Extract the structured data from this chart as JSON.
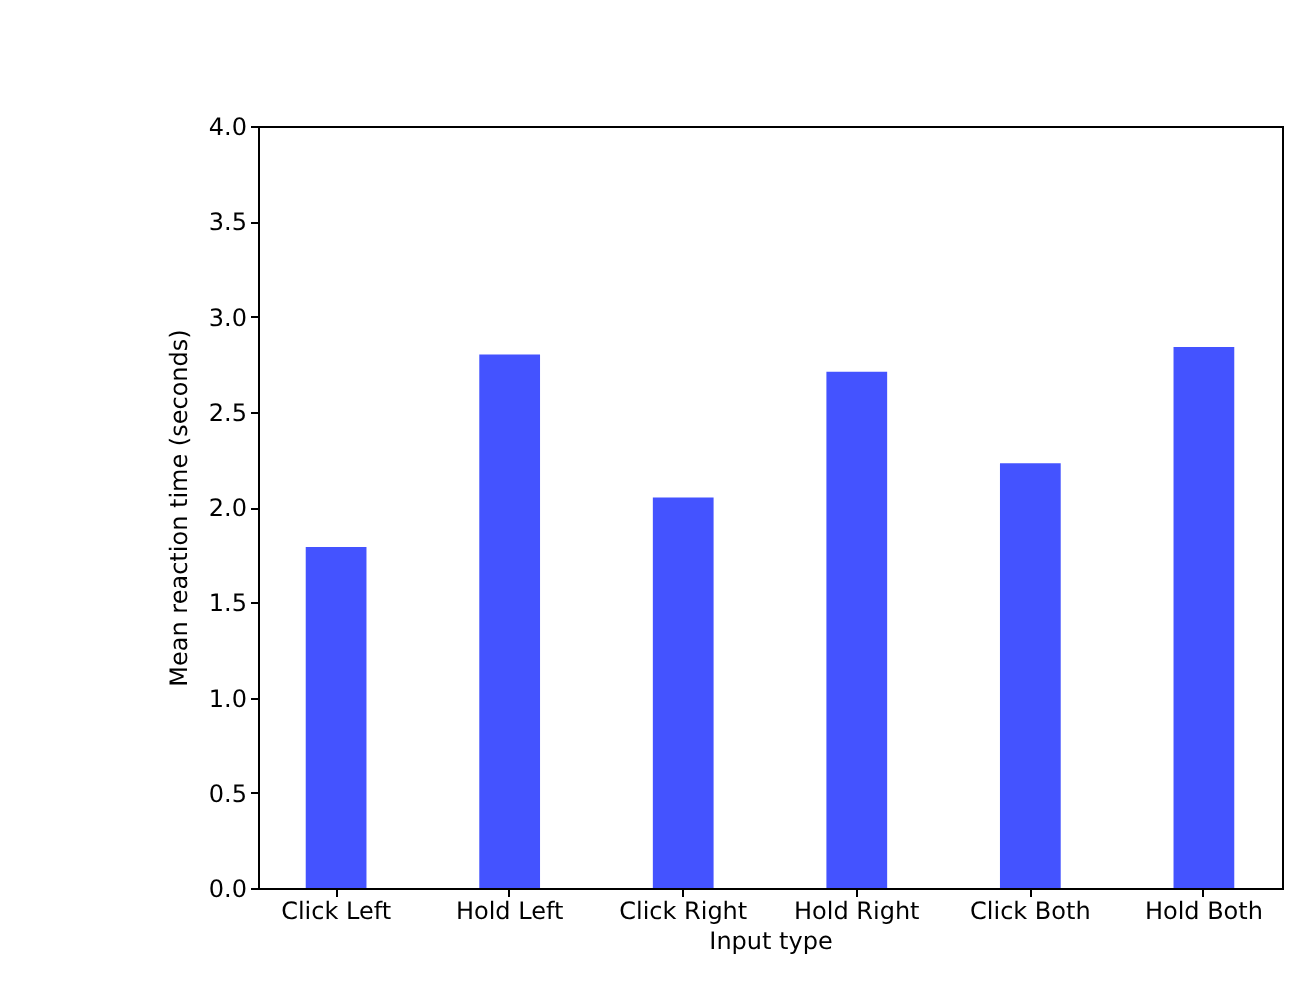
{
  "chart_data": {
    "type": "bar",
    "xlabel": "Input type",
    "ylabel": "Mean reaction time (seconds)",
    "categories": [
      "Click Left",
      "Hold Left",
      "Click Right",
      "Hold Right",
      "Click Both",
      "Hold Both"
    ],
    "values": [
      1.79,
      2.8,
      2.05,
      2.71,
      2.23,
      2.84
    ],
    "color": "#4453ff",
    "ylim": [
      0,
      4
    ],
    "yticks": [
      {
        "value": 0,
        "label": "0.0"
      },
      {
        "value": 0.5,
        "label": "0.5"
      },
      {
        "value": 1,
        "label": "1.0"
      },
      {
        "value": 1.5,
        "label": "1.5"
      },
      {
        "value": 2,
        "label": "2.0"
      },
      {
        "value": 2.5,
        "label": "2.5"
      },
      {
        "value": 3,
        "label": "3.0"
      },
      {
        "value": 3.5,
        "label": "3.5"
      },
      {
        "value": 4,
        "label": "4.0"
      }
    ]
  }
}
